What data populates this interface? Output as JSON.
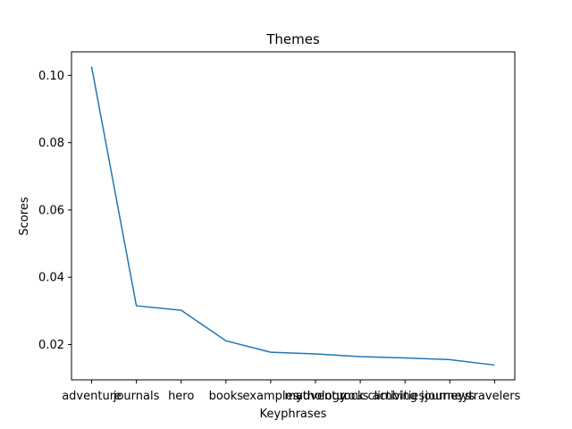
{
  "chart_data": {
    "type": "line",
    "title": "Themes",
    "xlabel": "Keyphrases",
    "ylabel": "Scores",
    "categories": [
      "adventure",
      "journals",
      "hero",
      "books",
      "examples",
      "mythology",
      "adventurous activities",
      "rock climbing journeys",
      "journeys",
      "travelers"
    ],
    "values": [
      0.1026,
      0.0315,
      0.0302,
      0.0211,
      0.0177,
      0.0172,
      0.0164,
      0.016,
      0.0155,
      0.0139
    ],
    "y_ticks": [
      0.02,
      0.04,
      0.06,
      0.08,
      0.1
    ],
    "y_tick_labels": [
      "0.02",
      "0.04",
      "0.06",
      "0.08",
      "0.10"
    ],
    "ylim": [
      0.0095,
      0.107
    ],
    "grid": false,
    "legend": "none",
    "line_color": "#1f77b4"
  }
}
